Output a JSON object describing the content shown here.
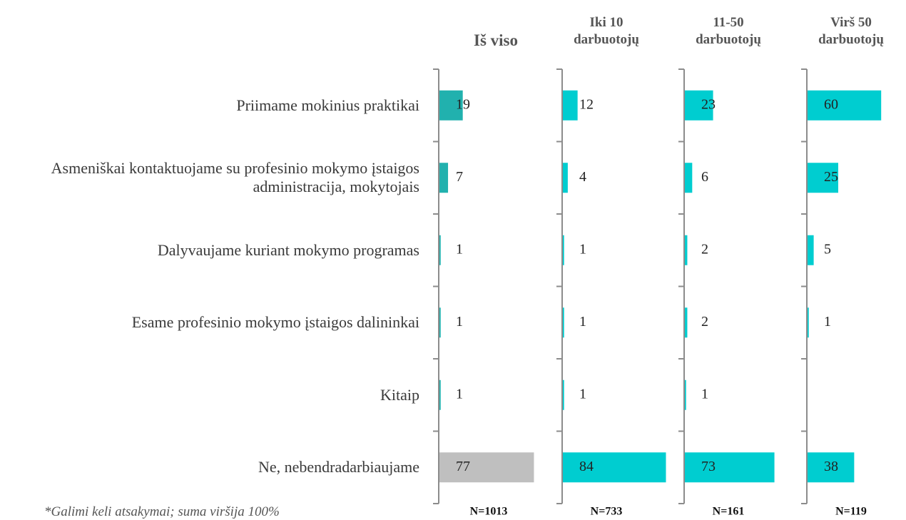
{
  "chart_data": {
    "type": "bar",
    "orientation": "horizontal",
    "categories": [
      "Priimame mokinius praktikai",
      "Asmeniškai kontaktuojame su profesinio mokymo įstaigos administracija, mokytojais",
      "Dalyvaujame kuriant mokymo programas",
      "Esame profesinio mokymo įstaigos dalininkai",
      "Kitaip",
      "Ne, nebendradarbiaujame"
    ],
    "series": [
      {
        "name": "Iš viso",
        "n_label": "N=1013",
        "colors": [
          "#21b1ae",
          "#21b1ae",
          "#21b1ae",
          "#21b1ae",
          "#21b1ae",
          "#bfbfbf"
        ],
        "values": [
          19,
          7,
          1,
          1,
          1,
          77
        ]
      },
      {
        "name": "Iki 10 darbuotojų",
        "n_label": "N=733",
        "color": "#00cdd0",
        "values": [
          12,
          4,
          1,
          1,
          1,
          84
        ]
      },
      {
        "name": "11-50 darbuotojų",
        "n_label": "N=161",
        "color": "#00cdd0",
        "values": [
          23,
          6,
          2,
          2,
          1,
          73
        ]
      },
      {
        "name": "Virš 50 darbuotojų",
        "n_label": "N=119",
        "color": "#00cdd0",
        "values": [
          60,
          25,
          5,
          1,
          null,
          38
        ]
      }
    ],
    "footnote": "*Galimi keli atsakymai; suma viršija 100%"
  }
}
